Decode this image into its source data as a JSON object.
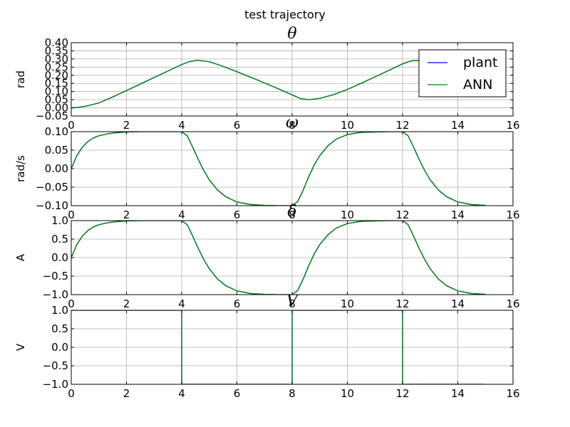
{
  "figure": {
    "title": "test trajectory"
  },
  "chart_data": [
    {
      "type": "line",
      "title": "θ",
      "xlabel": "",
      "ylabel": "rad",
      "xlim": [
        0,
        16
      ],
      "ylim": [
        -0.05,
        0.4
      ],
      "grid": true,
      "xticks": [
        0,
        2,
        4,
        6,
        8,
        10,
        12,
        14,
        16
      ],
      "yticks": [
        -0.05,
        0.0,
        0.05,
        0.1,
        0.15,
        0.2,
        0.25,
        0.3,
        0.35,
        0.4
      ],
      "xtick_labels": [
        "0",
        "2",
        "4",
        "6",
        "8",
        "10",
        "12",
        "14",
        "16"
      ],
      "ytick_labels": [
        "−0.05",
        "0.00",
        "0.05",
        "0.10",
        "0.15",
        "0.20",
        "0.25",
        "0.30",
        "0.35",
        "0.40"
      ],
      "legend": {
        "position": "right",
        "entries": [
          "plant",
          "ANN"
        ]
      },
      "series": [
        {
          "name": "plant",
          "color": "#0000ff",
          "x": [
            0,
            0.3,
            0.6,
            1,
            1.5,
            2,
            2.5,
            3,
            3.5,
            4,
            4.3,
            4.6,
            5,
            5.5,
            6,
            6.5,
            7,
            7.5,
            8,
            8.3,
            8.6,
            9,
            9.5,
            10,
            10.5,
            11,
            11.5,
            12,
            12.3,
            12.6,
            13,
            13.5,
            14,
            14.5,
            15
          ],
          "y": [
            0.0,
            0.004,
            0.013,
            0.03,
            0.067,
            0.106,
            0.146,
            0.186,
            0.226,
            0.266,
            0.285,
            0.292,
            0.283,
            0.255,
            0.222,
            0.188,
            0.153,
            0.117,
            0.08,
            0.057,
            0.05,
            0.058,
            0.081,
            0.113,
            0.151,
            0.19,
            0.23,
            0.27,
            0.288,
            0.291,
            0.282,
            0.254,
            0.22,
            0.186,
            0.152
          ]
        },
        {
          "name": "ANN",
          "color": "#008000",
          "x": [
            0,
            0.3,
            0.6,
            1,
            1.5,
            2,
            2.5,
            3,
            3.5,
            4,
            4.3,
            4.6,
            5,
            5.5,
            6,
            6.5,
            7,
            7.5,
            8,
            8.3,
            8.6,
            9,
            9.5,
            10,
            10.5,
            11,
            11.5,
            12,
            12.3,
            12.6,
            13,
            13.5,
            14,
            14.5,
            15
          ],
          "y": [
            0.0,
            0.004,
            0.013,
            0.03,
            0.067,
            0.106,
            0.146,
            0.186,
            0.226,
            0.266,
            0.285,
            0.292,
            0.283,
            0.255,
            0.222,
            0.188,
            0.153,
            0.117,
            0.08,
            0.057,
            0.05,
            0.058,
            0.081,
            0.113,
            0.151,
            0.19,
            0.23,
            0.27,
            0.288,
            0.291,
            0.282,
            0.254,
            0.22,
            0.186,
            0.152
          ]
        }
      ]
    },
    {
      "type": "line",
      "title": "ω",
      "xlabel": "",
      "ylabel": "rad/s",
      "xlim": [
        0,
        16
      ],
      "ylim": [
        -0.1,
        0.1
      ],
      "grid": true,
      "xticks": [
        0,
        2,
        4,
        6,
        8,
        10,
        12,
        14,
        16
      ],
      "yticks": [
        -0.1,
        -0.05,
        0.0,
        0.05,
        0.1
      ],
      "xtick_labels": [
        "0",
        "2",
        "4",
        "6",
        "8",
        "10",
        "12",
        "14",
        "16"
      ],
      "ytick_labels": [
        "−0.10",
        "−0.05",
        "0.00",
        "0.05",
        "0.10"
      ],
      "series": [
        {
          "name": "plant",
          "color": "#0000ff",
          "x": [
            0,
            0.2,
            0.4,
            0.6,
            0.8,
            1,
            1.3,
            1.6,
            2,
            2.5,
            3,
            3.5,
            4,
            4.2,
            4.4,
            4.6,
            4.8,
            5,
            5.3,
            5.6,
            6,
            6.5,
            7,
            7.5,
            8,
            8.2,
            8.4,
            8.6,
            8.8,
            9,
            9.3,
            9.6,
            10,
            10.5,
            11,
            11.5,
            12,
            12.2,
            12.4,
            12.6,
            12.8,
            13,
            13.3,
            13.6,
            14,
            14.5,
            15
          ],
          "y": [
            0.0,
            0.035,
            0.058,
            0.073,
            0.083,
            0.089,
            0.094,
            0.097,
            0.099,
            0.1,
            0.1,
            0.1,
            0.1,
            0.089,
            0.058,
            0.025,
            -0.005,
            -0.03,
            -0.058,
            -0.076,
            -0.09,
            -0.097,
            -0.099,
            -0.1,
            -0.1,
            -0.089,
            -0.058,
            -0.022,
            0.01,
            0.035,
            0.062,
            0.08,
            0.092,
            0.098,
            0.099,
            0.1,
            0.1,
            0.089,
            0.058,
            0.025,
            -0.005,
            -0.03,
            -0.058,
            -0.076,
            -0.09,
            -0.097,
            -0.099
          ]
        },
        {
          "name": "ANN",
          "color": "#008000",
          "x": [
            0,
            0.2,
            0.4,
            0.6,
            0.8,
            1,
            1.3,
            1.6,
            2,
            2.5,
            3,
            3.5,
            4,
            4.2,
            4.4,
            4.6,
            4.8,
            5,
            5.3,
            5.6,
            6,
            6.5,
            7,
            7.5,
            8,
            8.2,
            8.4,
            8.6,
            8.8,
            9,
            9.3,
            9.6,
            10,
            10.5,
            11,
            11.5,
            12,
            12.2,
            12.4,
            12.6,
            12.8,
            13,
            13.3,
            13.6,
            14,
            14.5,
            15
          ],
          "y": [
            0.0,
            0.035,
            0.058,
            0.073,
            0.083,
            0.089,
            0.094,
            0.097,
            0.099,
            0.1,
            0.1,
            0.1,
            0.1,
            0.089,
            0.058,
            0.025,
            -0.005,
            -0.03,
            -0.058,
            -0.076,
            -0.09,
            -0.097,
            -0.099,
            -0.1,
            -0.1,
            -0.089,
            -0.058,
            -0.022,
            0.01,
            0.035,
            0.062,
            0.08,
            0.092,
            0.098,
            0.099,
            0.1,
            0.1,
            0.089,
            0.058,
            0.025,
            -0.005,
            -0.03,
            -0.058,
            -0.076,
            -0.09,
            -0.097,
            -0.099
          ]
        }
      ]
    },
    {
      "type": "line",
      "title": "δ",
      "xlabel": "",
      "ylabel": "A",
      "xlim": [
        0,
        16
      ],
      "ylim": [
        -1.0,
        1.0
      ],
      "grid": true,
      "xticks": [
        0,
        2,
        4,
        6,
        8,
        10,
        12,
        14,
        16
      ],
      "yticks": [
        -1.0,
        -0.5,
        0.0,
        0.5,
        1.0
      ],
      "xtick_labels": [
        "0",
        "2",
        "4",
        "6",
        "8",
        "10",
        "12",
        "14",
        "16"
      ],
      "ytick_labels": [
        "−1.0",
        "−0.5",
        "0.0",
        "0.5",
        "1.0"
      ],
      "series": [
        {
          "name": "plant",
          "color": "#0000ff",
          "x": [
            0,
            0.2,
            0.4,
            0.6,
            0.8,
            1,
            1.3,
            1.6,
            2,
            2.5,
            3,
            3.5,
            4,
            4.2,
            4.4,
            4.6,
            4.8,
            5,
            5.3,
            5.6,
            6,
            6.5,
            7,
            7.5,
            8,
            8.2,
            8.4,
            8.6,
            8.8,
            9,
            9.3,
            9.6,
            10,
            10.5,
            11,
            11.5,
            12,
            12.2,
            12.4,
            12.6,
            12.8,
            13,
            13.3,
            13.6,
            14,
            14.5,
            15
          ],
          "y": [
            0.0,
            0.35,
            0.58,
            0.73,
            0.83,
            0.89,
            0.94,
            0.97,
            0.99,
            1.0,
            1.0,
            1.0,
            1.0,
            0.89,
            0.58,
            0.25,
            -0.05,
            -0.3,
            -0.58,
            -0.76,
            -0.9,
            -0.97,
            -0.99,
            -1.0,
            -1.0,
            -0.89,
            -0.58,
            -0.22,
            0.1,
            0.35,
            0.62,
            0.8,
            0.92,
            0.98,
            0.99,
            1.0,
            1.0,
            0.89,
            0.58,
            0.25,
            -0.05,
            -0.3,
            -0.58,
            -0.76,
            -0.9,
            -0.97,
            -0.99
          ]
        },
        {
          "name": "ANN",
          "color": "#008000",
          "x": [
            0,
            0.2,
            0.4,
            0.6,
            0.8,
            1,
            1.3,
            1.6,
            2,
            2.5,
            3,
            3.5,
            4,
            4.2,
            4.4,
            4.6,
            4.8,
            5,
            5.3,
            5.6,
            6,
            6.5,
            7,
            7.5,
            8,
            8.2,
            8.4,
            8.6,
            8.8,
            9,
            9.3,
            9.6,
            10,
            10.5,
            11,
            11.5,
            12,
            12.2,
            12.4,
            12.6,
            12.8,
            13,
            13.3,
            13.6,
            14,
            14.5,
            15
          ],
          "y": [
            0.0,
            0.35,
            0.58,
            0.73,
            0.83,
            0.89,
            0.94,
            0.97,
            0.99,
            1.0,
            1.0,
            1.0,
            1.0,
            0.89,
            0.58,
            0.25,
            -0.05,
            -0.3,
            -0.58,
            -0.76,
            -0.9,
            -0.97,
            -0.99,
            -1.0,
            -1.0,
            -0.89,
            -0.58,
            -0.22,
            0.1,
            0.35,
            0.62,
            0.8,
            0.92,
            0.98,
            0.99,
            1.0,
            1.0,
            0.89,
            0.58,
            0.25,
            -0.05,
            -0.3,
            -0.58,
            -0.76,
            -0.9,
            -0.97,
            -0.99
          ]
        }
      ]
    },
    {
      "type": "line",
      "title": "V",
      "xlabel": "",
      "ylabel": "V",
      "xlim": [
        0,
        16
      ],
      "ylim": [
        -1.0,
        1.0
      ],
      "grid": true,
      "xticks": [
        0,
        2,
        4,
        6,
        8,
        10,
        12,
        14,
        16
      ],
      "yticks": [
        -1.0,
        -0.5,
        0.0,
        0.5,
        1.0
      ],
      "xtick_labels": [
        "0",
        "2",
        "4",
        "6",
        "8",
        "10",
        "12",
        "14",
        "16"
      ],
      "ytick_labels": [
        "−1.0",
        "−0.5",
        "0.0",
        "0.5",
        "1.0"
      ],
      "series": [
        {
          "name": "plant",
          "color": "#0000ff",
          "x": [
            0,
            4,
            4,
            8,
            8,
            12,
            12,
            15
          ],
          "y": [
            1.0,
            1.0,
            -1.0,
            -1.0,
            1.0,
            1.0,
            -1.0,
            -1.0
          ]
        },
        {
          "name": "ANN",
          "color": "#008000",
          "x": [
            0,
            4,
            4,
            8,
            8,
            12,
            12,
            15
          ],
          "y": [
            1.0,
            1.0,
            -1.0,
            -1.0,
            1.0,
            1.0,
            -1.0,
            -1.0
          ]
        }
      ]
    }
  ]
}
